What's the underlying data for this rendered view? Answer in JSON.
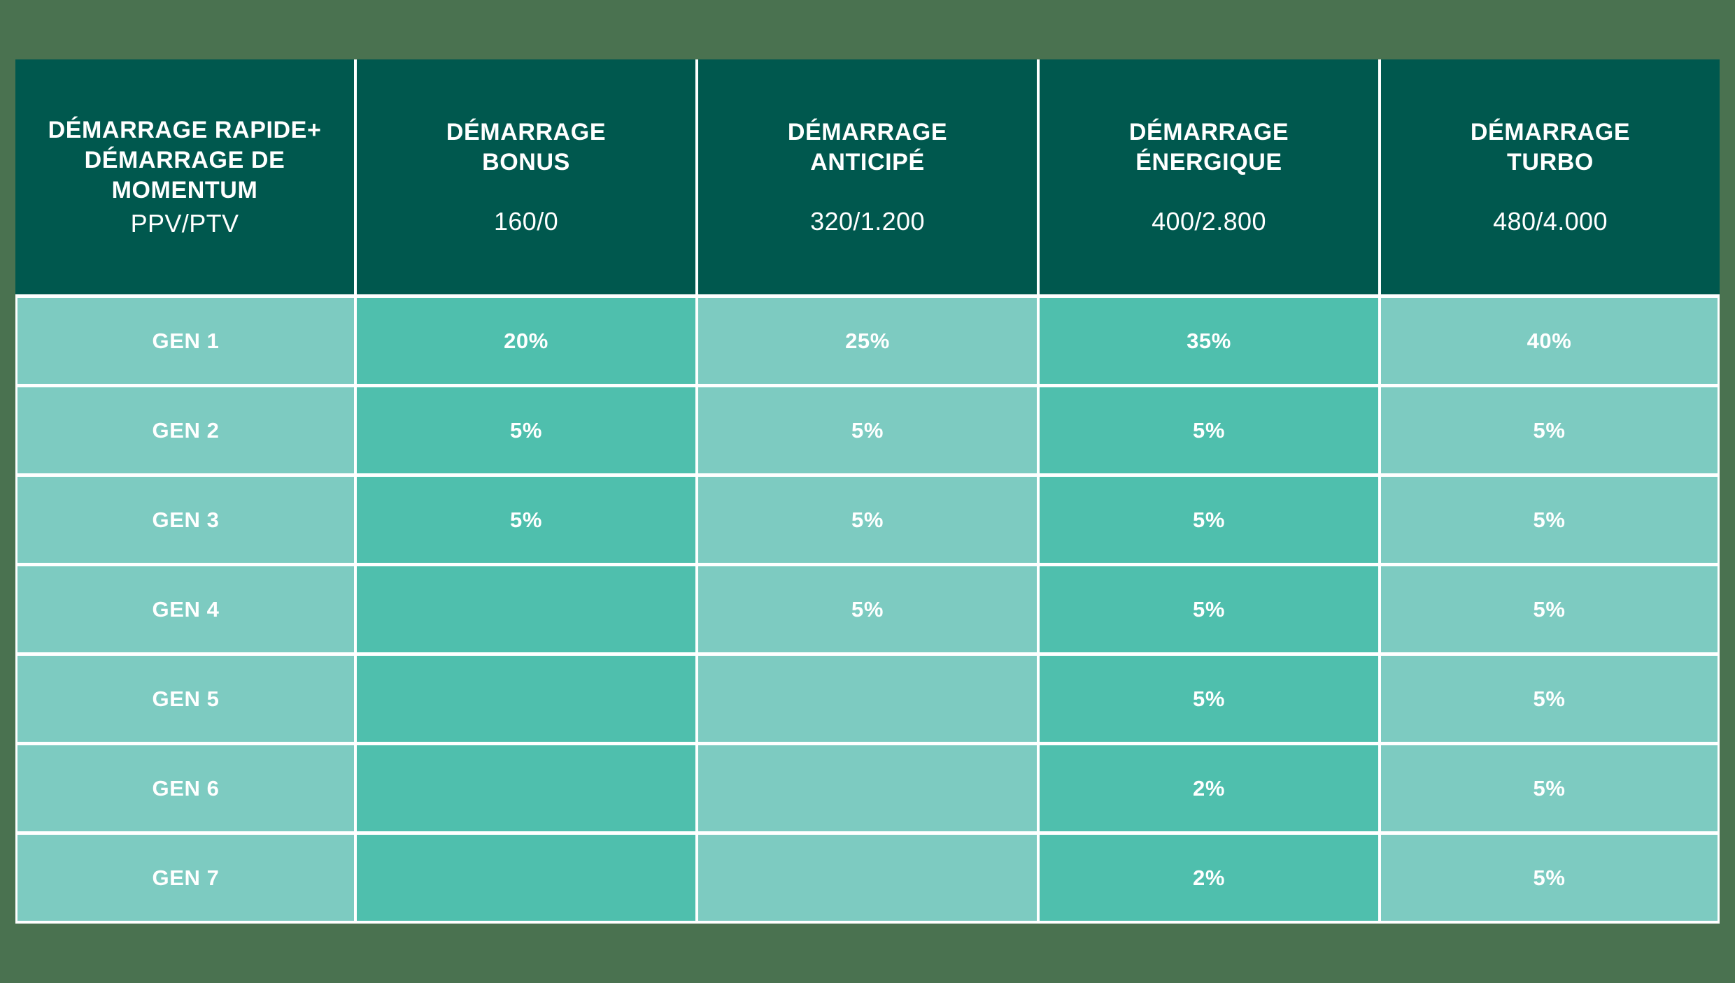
{
  "colors": {
    "background": "#4A7250",
    "header_bg": "#00584E",
    "cell_light": "#7DCBC1",
    "cell_dark": "#4FBFAD",
    "gridline": "#FFFFFF",
    "text": "#FFFFFF"
  },
  "table": {
    "header": {
      "columns": [
        {
          "title": "DÉMARRAGE RAPIDE+\nDÉMARRAGE DE\nMOMENTUM",
          "sub": "PPV/PTV"
        },
        {
          "title": "DÉMARRAGE\nBONUS",
          "sub": "160/0"
        },
        {
          "title": "DÉMARRAGE\nANTICIPÉ",
          "sub": "320/1.200"
        },
        {
          "title": "DÉMARRAGE\nÉNERGIQUE",
          "sub": "400/2.800"
        },
        {
          "title": "DÉMARRAGE\nTURBO",
          "sub": "480/4.000"
        }
      ]
    },
    "rows": [
      {
        "label": "GEN 1",
        "values": [
          "20%",
          "25%",
          "35%",
          "40%"
        ]
      },
      {
        "label": "GEN 2",
        "values": [
          "5%",
          "5%",
          "5%",
          "5%"
        ]
      },
      {
        "label": "GEN 3",
        "values": [
          "5%",
          "5%",
          "5%",
          "5%"
        ]
      },
      {
        "label": "GEN 4",
        "values": [
          "",
          "5%",
          "5%",
          "5%"
        ]
      },
      {
        "label": "GEN 5",
        "values": [
          "",
          "",
          "5%",
          "5%"
        ]
      },
      {
        "label": "GEN 6",
        "values": [
          "",
          "",
          "2%",
          "5%"
        ]
      },
      {
        "label": "GEN 7",
        "values": [
          "",
          "",
          "2%",
          "5%"
        ]
      }
    ]
  },
  "chart_data": {
    "type": "table",
    "title": "",
    "columns": [
      "DÉMARRAGE RAPIDE+ DÉMARRAGE DE MOMENTUM (PPV/PTV)",
      "DÉMARRAGE BONUS (160/0)",
      "DÉMARRAGE ANTICIPÉ (320/1.200)",
      "DÉMARRAGE ÉNERGIQUE (400/2.800)",
      "DÉMARRAGE TURBO (480/4.000)"
    ],
    "rows": [
      [
        "GEN 1",
        "20%",
        "25%",
        "35%",
        "40%"
      ],
      [
        "GEN 2",
        "5%",
        "5%",
        "5%",
        "5%"
      ],
      [
        "GEN 3",
        "5%",
        "5%",
        "5%",
        "5%"
      ],
      [
        "GEN 4",
        "",
        "5%",
        "5%",
        "5%"
      ],
      [
        "GEN 5",
        "",
        "",
        "5%",
        "5%"
      ],
      [
        "GEN 6",
        "",
        "",
        "2%",
        "5%"
      ],
      [
        "GEN 7",
        "",
        "",
        "2%",
        "5%"
      ]
    ],
    "layout": {
      "header_row": true,
      "gridlines": "white",
      "column_shading_alternating": true
    }
  }
}
